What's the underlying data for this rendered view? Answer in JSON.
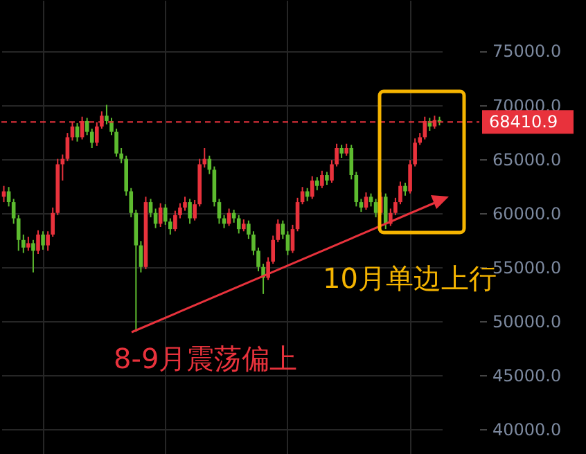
{
  "chart_data": {
    "type": "candlestick",
    "categories": [
      null,
      null,
      null,
      null,
      null,
      null,
      null,
      null,
      null,
      null,
      null,
      null,
      null,
      null,
      null,
      null,
      null,
      null,
      null,
      null,
      null,
      null,
      null,
      null,
      null,
      null,
      null,
      null,
      null,
      null,
      null,
      null,
      null,
      null,
      null,
      null,
      null,
      null,
      null,
      null,
      null,
      null,
      null,
      null,
      null,
      null,
      null,
      null,
      null,
      null,
      null,
      null,
      null,
      null,
      null,
      null,
      null,
      null,
      null,
      null,
      null,
      null,
      null,
      null,
      null,
      null,
      null,
      null,
      null,
      null,
      null,
      null,
      null,
      null,
      null,
      null,
      null,
      null,
      null,
      null,
      null,
      null,
      null,
      null,
      null,
      null,
      null,
      null,
      null,
      null
    ],
    "ohlc": [
      [
        61500,
        62500,
        61000,
        62000
      ],
      [
        62000,
        62400,
        60600,
        61000
      ],
      [
        61000,
        61300,
        59000,
        59500
      ],
      [
        59500,
        59800,
        56500,
        57500
      ],
      [
        57500,
        58000,
        56300,
        56800
      ],
      [
        56800,
        57800,
        56500,
        57200
      ],
      [
        57200,
        57500,
        54500,
        56500
      ],
      [
        56500,
        58400,
        56200,
        58000
      ],
      [
        58000,
        58300,
        56600,
        57000
      ],
      [
        57000,
        58300,
        56500,
        58000
      ],
      [
        58000,
        60500,
        57800,
        60000
      ],
      [
        60000,
        65000,
        59800,
        64500
      ],
      [
        64500,
        65400,
        63000,
        65000
      ],
      [
        65000,
        67400,
        64800,
        67000
      ],
      [
        67000,
        68400,
        66700,
        68000
      ],
      [
        68000,
        68300,
        66600,
        67000
      ],
      [
        67000,
        68900,
        66800,
        68500
      ],
      [
        68500,
        68800,
        67200,
        67500
      ],
      [
        67500,
        67800,
        66000,
        66500
      ],
      [
        66500,
        68400,
        66200,
        68000
      ],
      [
        68000,
        69400,
        67800,
        69000
      ],
      [
        69000,
        70000,
        68200,
        68500
      ],
      [
        68500,
        68800,
        67200,
        67500
      ],
      [
        67500,
        67800,
        65200,
        65500
      ],
      [
        65500,
        66000,
        64600,
        65000
      ],
      [
        65000,
        65300,
        61600,
        62000
      ],
      [
        62000,
        62300,
        59600,
        60000
      ],
      [
        60000,
        60300,
        49000,
        57000
      ],
      [
        57000,
        57400,
        54500,
        55000
      ],
      [
        55000,
        61500,
        54800,
        61000
      ],
      [
        61000,
        61300,
        59600,
        60000
      ],
      [
        60000,
        60400,
        58600,
        59000
      ],
      [
        59000,
        60900,
        58700,
        60500
      ],
      [
        60500,
        60800,
        58900,
        59200
      ],
      [
        59200,
        59500,
        58000,
        58500
      ],
      [
        58500,
        60200,
        58300,
        59800
      ],
      [
        59800,
        60900,
        59500,
        60500
      ],
      [
        60500,
        61500,
        60200,
        61000
      ],
      [
        61000,
        61300,
        59000,
        59500
      ],
      [
        59500,
        61200,
        59300,
        60800
      ],
      [
        60800,
        65000,
        60600,
        64500
      ],
      [
        64500,
        66000,
        64200,
        65000
      ],
      [
        65000,
        65300,
        63600,
        64000
      ],
      [
        64000,
        64300,
        60600,
        61000
      ],
      [
        61000,
        61300,
        59000,
        59500
      ],
      [
        59500,
        59800,
        58600,
        59000
      ],
      [
        59000,
        60400,
        58800,
        60000
      ],
      [
        60000,
        60300,
        59100,
        59500
      ],
      [
        59500,
        59800,
        58100,
        58500
      ],
      [
        58500,
        59400,
        58300,
        59000
      ],
      [
        59000,
        59300,
        57600,
        58000
      ],
      [
        58000,
        58300,
        56100,
        56500
      ],
      [
        56500,
        56800,
        54600,
        55000
      ],
      [
        55000,
        55300,
        52500,
        54000
      ],
      [
        54000,
        55900,
        53800,
        55500
      ],
      [
        55500,
        57900,
        55300,
        57500
      ],
      [
        57500,
        59400,
        57300,
        59000
      ],
      [
        59000,
        59300,
        57600,
        58000
      ],
      [
        58000,
        58300,
        56100,
        56500
      ],
      [
        56500,
        58900,
        56300,
        58500
      ],
      [
        58500,
        61400,
        58300,
        61000
      ],
      [
        61000,
        62400,
        60800,
        62000
      ],
      [
        62000,
        62300,
        61100,
        61500
      ],
      [
        61500,
        63400,
        61300,
        63000
      ],
      [
        63000,
        63300,
        62100,
        62500
      ],
      [
        62500,
        63900,
        62300,
        63500
      ],
      [
        63500,
        63800,
        62600,
        63000
      ],
      [
        63000,
        64900,
        62800,
        64500
      ],
      [
        64500,
        66400,
        64300,
        66000
      ],
      [
        66000,
        66300,
        65100,
        65500
      ],
      [
        65500,
        66400,
        65300,
        66000
      ],
      [
        66000,
        66300,
        63100,
        63500
      ],
      [
        63500,
        63800,
        60600,
        61000
      ],
      [
        61000,
        61300,
        60100,
        60500
      ],
      [
        60500,
        61900,
        60300,
        61500
      ],
      [
        61500,
        61800,
        60600,
        61000
      ],
      [
        61000,
        61300,
        59600,
        60000
      ],
      [
        60000,
        61900,
        59800,
        61500
      ],
      [
        61500,
        61800,
        58500,
        59000
      ],
      [
        59000,
        60400,
        58800,
        60000
      ],
      [
        60000,
        61400,
        59800,
        61000
      ],
      [
        61000,
        62900,
        60800,
        62500
      ],
      [
        62500,
        62800,
        61600,
        62000
      ],
      [
        62000,
        64900,
        61800,
        64500
      ],
      [
        64500,
        66900,
        64300,
        66500
      ],
      [
        66500,
        67400,
        66300,
        67000
      ],
      [
        67000,
        68900,
        66800,
        68500
      ],
      [
        68500,
        68800,
        67600,
        68000
      ],
      [
        68000,
        69000,
        67800,
        68600
      ],
      [
        68600,
        68900,
        68100,
        68410.9
      ]
    ],
    "colors": [
      "#e8323c",
      "#5dbb2f",
      "#5dbb2f",
      "#5dbb2f",
      "#5dbb2f",
      "#e8323c",
      "#5dbb2f",
      "#e8323c",
      "#5dbb2f",
      "#e8323c",
      "#e8323c",
      "#e8323c",
      "#e8323c",
      "#e8323c",
      "#e8323c",
      "#5dbb2f",
      "#e8323c",
      "#5dbb2f",
      "#5dbb2f",
      "#e8323c",
      "#e8323c",
      "#5dbb2f",
      "#5dbb2f",
      "#5dbb2f",
      "#5dbb2f",
      "#5dbb2f",
      "#5dbb2f",
      "#5dbb2f",
      "#5dbb2f",
      "#e8323c",
      "#5dbb2f",
      "#5dbb2f",
      "#e8323c",
      "#5dbb2f",
      "#5dbb2f",
      "#e8323c",
      "#e8323c",
      "#e8323c",
      "#5dbb2f",
      "#e8323c",
      "#e8323c",
      "#e8323c",
      "#5dbb2f",
      "#5dbb2f",
      "#5dbb2f",
      "#5dbb2f",
      "#e8323c",
      "#5dbb2f",
      "#5dbb2f",
      "#e8323c",
      "#5dbb2f",
      "#5dbb2f",
      "#5dbb2f",
      "#5dbb2f",
      "#e8323c",
      "#e8323c",
      "#e8323c",
      "#5dbb2f",
      "#5dbb2f",
      "#e8323c",
      "#e8323c",
      "#e8323c",
      "#5dbb2f",
      "#e8323c",
      "#5dbb2f",
      "#e8323c",
      "#5dbb2f",
      "#e8323c",
      "#e8323c",
      "#5dbb2f",
      "#e8323c",
      "#5dbb2f",
      "#5dbb2f",
      "#5dbb2f",
      "#e8323c",
      "#5dbb2f",
      "#5dbb2f",
      "#e8323c",
      "#5dbb2f",
      "#e8323c",
      "#e8323c",
      "#e8323c",
      "#5dbb2f",
      "#e8323c",
      "#e8323c",
      "#e8323c",
      "#e8323c",
      "#5dbb2f",
      "#e8323c",
      "#5dbb2f"
    ],
    "ylim": [
      37700,
      79700
    ],
    "yticks": [
      {
        "value": 40000,
        "label": "40000.0"
      },
      {
        "value": 45000,
        "label": "45000.0"
      },
      {
        "value": 50000,
        "label": "50000.0"
      },
      {
        "value": 55000,
        "label": "55000.0"
      },
      {
        "value": 60000,
        "label": "60000.0"
      },
      {
        "value": 65000,
        "label": "65000.0"
      },
      {
        "value": 70000,
        "label": "70000.0"
      },
      {
        "value": 75000,
        "label": "75000.0"
      }
    ],
    "grid": true,
    "ref_lines": [
      {
        "axis": "y",
        "value": 68410.9,
        "label": "68410.9",
        "color": "#e8323c",
        "line_style": "dashed"
      }
    ],
    "annotations": [
      "10月单边上行",
      "8-9月震荡偏上"
    ]
  }
}
